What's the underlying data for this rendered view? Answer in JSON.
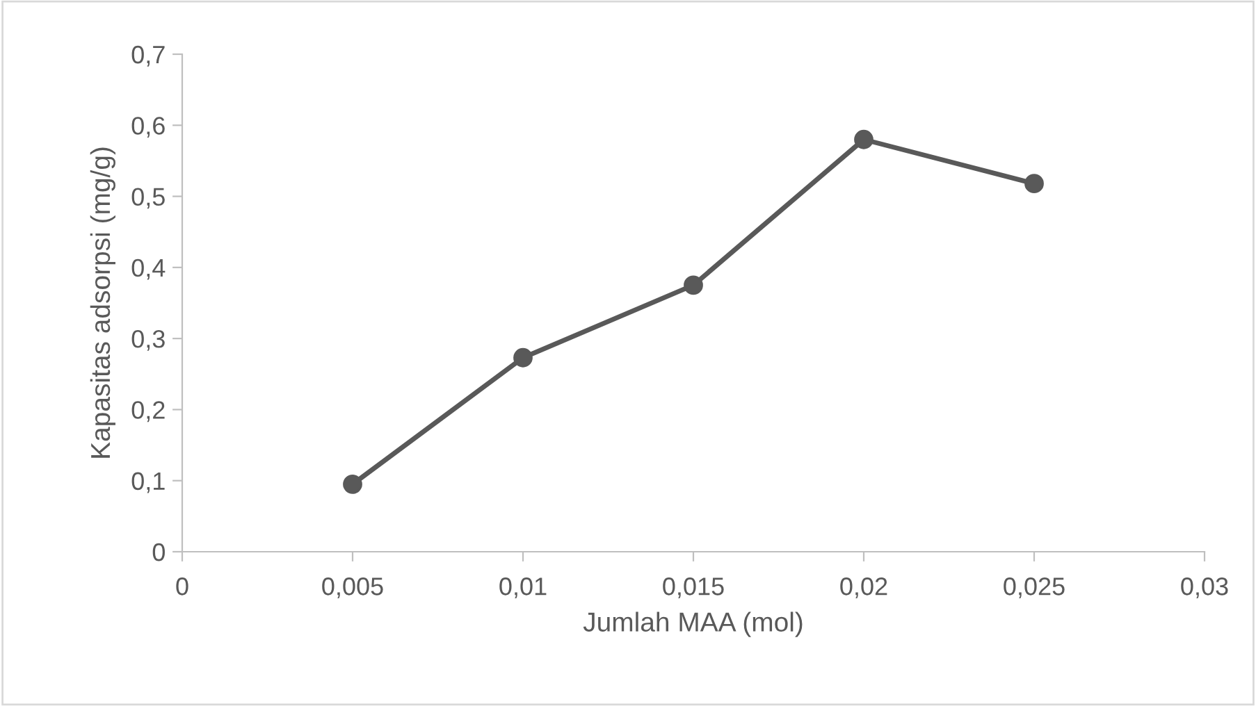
{
  "chart_data": {
    "type": "line",
    "xlabel": "Jumlah MAA (mol)",
    "ylabel": "Kapasitas adsorpsi (mg/g)",
    "x": [
      0.005,
      0.01,
      0.015,
      0.02,
      0.025
    ],
    "series": [
      {
        "color": "#595959",
        "values": [
          0.095,
          0.273,
          0.375,
          0.58,
          0.518
        ]
      }
    ],
    "marker": "circle",
    "line_style": "solid",
    "xlim": [
      0,
      0.03
    ],
    "xticks": [
      0,
      {
        "value": 0.005,
        "label": "0,005"
      },
      {
        "value": 0.01,
        "label": "0,01"
      },
      {
        "value": 0.015,
        "label": "0,015"
      },
      {
        "value": 0.02,
        "label": "0,02"
      },
      {
        "value": 0.025,
        "label": "0,025"
      },
      {
        "value": 0.03,
        "label": "0,03"
      }
    ],
    "ylim": [
      0,
      0.7
    ],
    "yticks": [
      0,
      {
        "value": 0.1,
        "label": "0,1"
      },
      {
        "value": 0.2,
        "label": "0,2"
      },
      {
        "value": 0.3,
        "label": "0,3"
      },
      {
        "value": 0.4,
        "label": "0,4"
      },
      {
        "value": 0.5,
        "label": "0,5"
      },
      {
        "value": 0.6,
        "label": "0,6"
      },
      {
        "value": 0.7,
        "label": "0,7"
      }
    ],
    "grid": false,
    "legend": false
  }
}
